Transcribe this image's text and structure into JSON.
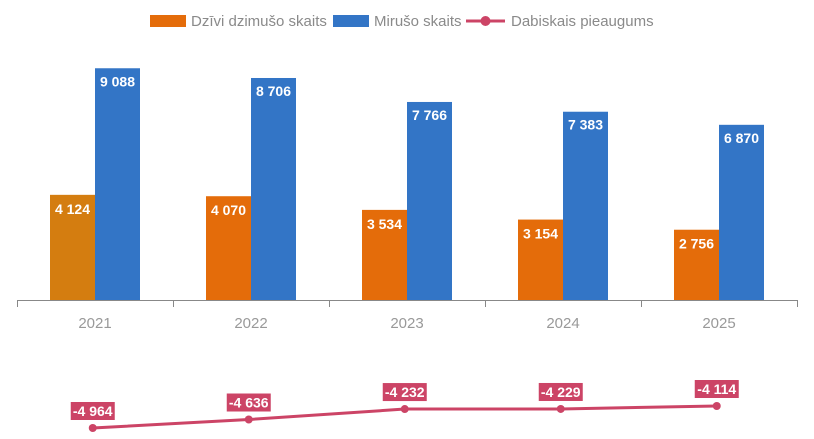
{
  "chart_data": [
    {
      "type": "bar",
      "title": "",
      "xlabel": "",
      "ylabel": "",
      "categories": [
        "2021",
        "2022",
        "2023",
        "2024",
        "2025"
      ],
      "series": [
        {
          "name": "Dzīvi dzimušo skaits",
          "color": "#e46c0a",
          "values": [
            4124,
            4070,
            3534,
            3154,
            2756
          ],
          "labels": [
            "4 124",
            "4 070",
            "3 534",
            "3 154",
            "2 756"
          ]
        },
        {
          "name": "Mirušo skaits",
          "color": "#3375c6",
          "values": [
            9088,
            8706,
            7766,
            7383,
            6870
          ],
          "labels": [
            "9 088",
            "8 706",
            "7 766",
            "7 383",
            "6 870"
          ]
        }
      ],
      "highlight": {
        "series": 0,
        "index": 0,
        "color": "#d47d10"
      },
      "ylim": [
        0,
        10000
      ],
      "grid": false,
      "legend": "top-center"
    },
    {
      "type": "line",
      "categories": [
        "2021",
        "2022",
        "2023",
        "2024",
        "2025"
      ],
      "series": [
        {
          "name": "Dabiskais pieaugums",
          "color": "#cc4466",
          "values": [
            -4964,
            -4636,
            -4232,
            -4229,
            -4114
          ],
          "labels": [
            "-4 964",
            "-4 636",
            "-4 232",
            "-4 229",
            "-4 114"
          ]
        }
      ],
      "ylim": [
        -4964,
        -4114
      ],
      "grid": false
    }
  ],
  "legend": [
    {
      "label": "Dzīvi dzimušo skaits",
      "kind": "bar",
      "color": "#e46c0a"
    },
    {
      "label": "Mirušo skaits",
      "kind": "bar",
      "color": "#3375c6"
    },
    {
      "label": "Dabiskais pieaugums",
      "kind": "line",
      "color": "#cc4466"
    }
  ]
}
